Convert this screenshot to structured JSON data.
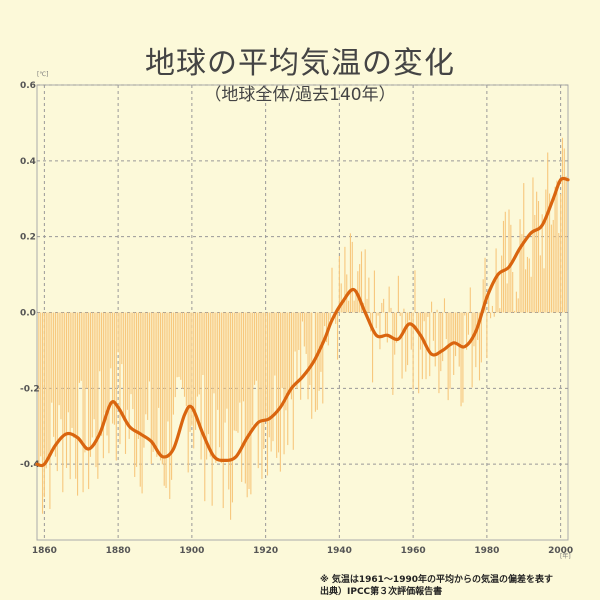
{
  "chart_data": {
    "type": "bar",
    "title": "地球の平均気温の変化",
    "subtitle": "（地球全体/過去140年）",
    "y_unit": "[℃]",
    "x_unit": "[年]",
    "xlim": [
      1858,
      2002
    ],
    "ylim": [
      -0.6,
      0.6
    ],
    "x_ticks": [
      1860,
      1880,
      1900,
      1920,
      1940,
      1960,
      1980,
      2000
    ],
    "x_tick_labels": [
      "1860",
      "1880",
      "1900",
      "1920",
      "1940",
      "1960",
      "1980",
      "2000"
    ],
    "y_ticks": [
      0.6,
      0.4,
      0.2,
      0.0,
      -0.2,
      -0.4
    ],
    "y_tick_labels": [
      "0.6",
      "0.4",
      "0.2",
      "0.0",
      "-0.2",
      "-0.4"
    ],
    "grid": true,
    "bar_color": "#f7c77d",
    "line_color": "#d9650f",
    "series": [
      {
        "type": "line",
        "x": [
          1858,
          1860,
          1863,
          1866,
          1869,
          1872,
          1875,
          1878,
          1880,
          1883,
          1886,
          1889,
          1892,
          1895,
          1898,
          1900,
          1903,
          1906,
          1909,
          1912,
          1915,
          1918,
          1921,
          1924,
          1927,
          1930,
          1933,
          1936,
          1938,
          1941,
          1944,
          1947,
          1950,
          1953,
          1956,
          1959,
          1962,
          1965,
          1968,
          1971,
          1974,
          1977,
          1980,
          1983,
          1986,
          1989,
          1992,
          1995,
          1998,
          2000,
          2002
        ],
        "values": [
          -0.4,
          -0.4,
          -0.35,
          -0.32,
          -0.33,
          -0.36,
          -0.32,
          -0.24,
          -0.25,
          -0.3,
          -0.32,
          -0.34,
          -0.38,
          -0.36,
          -0.27,
          -0.25,
          -0.32,
          -0.38,
          -0.39,
          -0.38,
          -0.33,
          -0.29,
          -0.28,
          -0.25,
          -0.2,
          -0.17,
          -0.13,
          -0.07,
          -0.02,
          0.03,
          0.06,
          0.0,
          -0.06,
          -0.06,
          -0.07,
          -0.03,
          -0.06,
          -0.11,
          -0.1,
          -0.08,
          -0.09,
          -0.05,
          0.04,
          0.1,
          0.12,
          0.17,
          0.21,
          0.23,
          0.3,
          0.35,
          0.35
        ]
      }
    ]
  },
  "note": {
    "line1": "※ 気温は1961〜1990年の平均からの気温の偏差を表す",
    "line2": "出典）IPCC第３次評価報告書"
  }
}
